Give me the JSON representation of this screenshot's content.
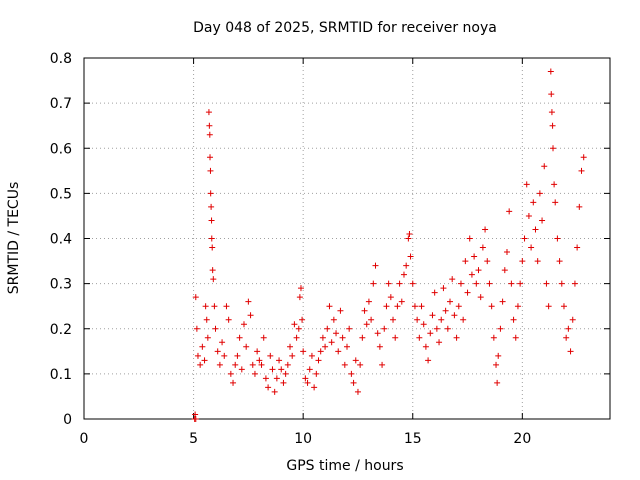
{
  "chart_data": {
    "type": "scatter",
    "title": "Day 048 of 2025, SRMTID for receiver noya",
    "xlabel": "GPS time / hours",
    "ylabel": "SRMTID / TECUs",
    "xlim": [
      0,
      24
    ],
    "ylim": [
      0,
      0.8
    ],
    "x_ticks": [
      0,
      5,
      10,
      15,
      20
    ],
    "x_tick_labels": [
      "0",
      "5",
      "10",
      "15",
      "20"
    ],
    "y_ticks": [
      0,
      0.1,
      0.2,
      0.3,
      0.4,
      0.5,
      0.6,
      0.7,
      0.8
    ],
    "y_tick_labels": [
      "0",
      "0.1",
      "0.2",
      "0.3",
      "0.4",
      "0.5",
      "0.6",
      "0.7",
      "0.8"
    ],
    "grid": true,
    "marker": "+",
    "marker_color": "#e00000",
    "series": [
      {
        "name": "SRMTID",
        "points": [
          [
            5.05,
            0.0
          ],
          [
            5.07,
            0.01
          ],
          [
            5.1,
            0.0
          ],
          [
            5.1,
            0.27
          ],
          [
            5.15,
            0.2
          ],
          [
            5.2,
            0.14
          ],
          [
            5.3,
            0.12
          ],
          [
            5.4,
            0.16
          ],
          [
            5.5,
            0.13
          ],
          [
            5.55,
            0.25
          ],
          [
            5.6,
            0.22
          ],
          [
            5.65,
            0.18
          ],
          [
            5.7,
            0.68
          ],
          [
            5.72,
            0.65
          ],
          [
            5.74,
            0.63
          ],
          [
            5.75,
            0.58
          ],
          [
            5.77,
            0.55
          ],
          [
            5.78,
            0.5
          ],
          [
            5.8,
            0.47
          ],
          [
            5.82,
            0.44
          ],
          [
            5.83,
            0.4
          ],
          [
            5.85,
            0.38
          ],
          [
            5.87,
            0.33
          ],
          [
            5.9,
            0.31
          ],
          [
            5.95,
            0.25
          ],
          [
            6.0,
            0.2
          ],
          [
            6.1,
            0.15
          ],
          [
            6.2,
            0.12
          ],
          [
            6.3,
            0.17
          ],
          [
            6.4,
            0.14
          ],
          [
            6.5,
            0.25
          ],
          [
            6.6,
            0.22
          ],
          [
            6.7,
            0.1
          ],
          [
            6.8,
            0.08
          ],
          [
            6.9,
            0.12
          ],
          [
            7.0,
            0.14
          ],
          [
            7.1,
            0.18
          ],
          [
            7.2,
            0.11
          ],
          [
            7.3,
            0.21
          ],
          [
            7.4,
            0.16
          ],
          [
            7.5,
            0.26
          ],
          [
            7.6,
            0.23
          ],
          [
            7.7,
            0.12
          ],
          [
            7.8,
            0.1
          ],
          [
            7.9,
            0.15
          ],
          [
            8.0,
            0.13
          ],
          [
            8.1,
            0.12
          ],
          [
            8.2,
            0.18
          ],
          [
            8.3,
            0.09
          ],
          [
            8.4,
            0.07
          ],
          [
            8.5,
            0.14
          ],
          [
            8.6,
            0.11
          ],
          [
            8.7,
            0.06
          ],
          [
            8.8,
            0.09
          ],
          [
            8.9,
            0.13
          ],
          [
            9.0,
            0.11
          ],
          [
            9.1,
            0.08
          ],
          [
            9.2,
            0.1
          ],
          [
            9.3,
            0.12
          ],
          [
            9.4,
            0.16
          ],
          [
            9.5,
            0.14
          ],
          [
            9.6,
            0.21
          ],
          [
            9.7,
            0.18
          ],
          [
            9.8,
            0.2
          ],
          [
            9.85,
            0.27
          ],
          [
            9.9,
            0.29
          ],
          [
            9.95,
            0.22
          ],
          [
            10.0,
            0.15
          ],
          [
            10.1,
            0.09
          ],
          [
            10.2,
            0.08
          ],
          [
            10.3,
            0.11
          ],
          [
            10.4,
            0.14
          ],
          [
            10.5,
            0.07
          ],
          [
            10.6,
            0.1
          ],
          [
            10.7,
            0.13
          ],
          [
            10.8,
            0.15
          ],
          [
            10.9,
            0.18
          ],
          [
            11.0,
            0.16
          ],
          [
            11.1,
            0.2
          ],
          [
            11.2,
            0.25
          ],
          [
            11.3,
            0.17
          ],
          [
            11.4,
            0.22
          ],
          [
            11.5,
            0.19
          ],
          [
            11.6,
            0.15
          ],
          [
            11.7,
            0.24
          ],
          [
            11.8,
            0.18
          ],
          [
            11.9,
            0.12
          ],
          [
            12.0,
            0.16
          ],
          [
            12.1,
            0.2
          ],
          [
            12.2,
            0.1
          ],
          [
            12.3,
            0.08
          ],
          [
            12.4,
            0.13
          ],
          [
            12.5,
            0.06
          ],
          [
            12.6,
            0.12
          ],
          [
            12.7,
            0.18
          ],
          [
            12.8,
            0.24
          ],
          [
            12.9,
            0.21
          ],
          [
            13.0,
            0.26
          ],
          [
            13.1,
            0.22
          ],
          [
            13.2,
            0.3
          ],
          [
            13.3,
            0.34
          ],
          [
            13.4,
            0.19
          ],
          [
            13.5,
            0.16
          ],
          [
            13.6,
            0.12
          ],
          [
            13.7,
            0.2
          ],
          [
            13.8,
            0.25
          ],
          [
            13.9,
            0.3
          ],
          [
            14.0,
            0.27
          ],
          [
            14.1,
            0.22
          ],
          [
            14.2,
            0.18
          ],
          [
            14.3,
            0.25
          ],
          [
            14.4,
            0.3
          ],
          [
            14.5,
            0.26
          ],
          [
            14.6,
            0.32
          ],
          [
            14.7,
            0.34
          ],
          [
            14.8,
            0.4
          ],
          [
            14.85,
            0.41
          ],
          [
            14.9,
            0.36
          ],
          [
            15.0,
            0.3
          ],
          [
            15.1,
            0.25
          ],
          [
            15.2,
            0.22
          ],
          [
            15.3,
            0.18
          ],
          [
            15.4,
            0.25
          ],
          [
            15.5,
            0.21
          ],
          [
            15.6,
            0.16
          ],
          [
            15.7,
            0.13
          ],
          [
            15.8,
            0.19
          ],
          [
            15.9,
            0.23
          ],
          [
            16.0,
            0.28
          ],
          [
            16.1,
            0.2
          ],
          [
            16.2,
            0.17
          ],
          [
            16.3,
            0.22
          ],
          [
            16.4,
            0.29
          ],
          [
            16.5,
            0.24
          ],
          [
            16.6,
            0.2
          ],
          [
            16.7,
            0.26
          ],
          [
            16.8,
            0.31
          ],
          [
            16.9,
            0.23
          ],
          [
            17.0,
            0.18
          ],
          [
            17.1,
            0.25
          ],
          [
            17.2,
            0.3
          ],
          [
            17.3,
            0.22
          ],
          [
            17.4,
            0.35
          ],
          [
            17.5,
            0.28
          ],
          [
            17.6,
            0.4
          ],
          [
            17.7,
            0.32
          ],
          [
            17.8,
            0.36
          ],
          [
            17.9,
            0.3
          ],
          [
            18.0,
            0.33
          ],
          [
            18.1,
            0.27
          ],
          [
            18.2,
            0.38
          ],
          [
            18.3,
            0.42
          ],
          [
            18.4,
            0.35
          ],
          [
            18.5,
            0.3
          ],
          [
            18.6,
            0.25
          ],
          [
            18.7,
            0.18
          ],
          [
            18.8,
            0.12
          ],
          [
            18.85,
            0.08
          ],
          [
            18.9,
            0.14
          ],
          [
            19.0,
            0.2
          ],
          [
            19.1,
            0.26
          ],
          [
            19.2,
            0.33
          ],
          [
            19.3,
            0.37
          ],
          [
            19.4,
            0.46
          ],
          [
            19.5,
            0.3
          ],
          [
            19.6,
            0.22
          ],
          [
            19.7,
            0.18
          ],
          [
            19.8,
            0.25
          ],
          [
            19.9,
            0.3
          ],
          [
            20.0,
            0.35
          ],
          [
            20.1,
            0.4
          ],
          [
            20.2,
            0.52
          ],
          [
            20.3,
            0.45
          ],
          [
            20.4,
            0.38
          ],
          [
            20.5,
            0.48
          ],
          [
            20.6,
            0.42
          ],
          [
            20.7,
            0.35
          ],
          [
            20.8,
            0.5
          ],
          [
            20.9,
            0.44
          ],
          [
            21.0,
            0.56
          ],
          [
            21.1,
            0.3
          ],
          [
            21.2,
            0.25
          ],
          [
            21.3,
            0.77
          ],
          [
            21.32,
            0.72
          ],
          [
            21.35,
            0.68
          ],
          [
            21.38,
            0.65
          ],
          [
            21.4,
            0.6
          ],
          [
            21.45,
            0.52
          ],
          [
            21.5,
            0.48
          ],
          [
            21.6,
            0.4
          ],
          [
            21.7,
            0.35
          ],
          [
            21.8,
            0.3
          ],
          [
            21.9,
            0.25
          ],
          [
            22.0,
            0.18
          ],
          [
            22.1,
            0.2
          ],
          [
            22.2,
            0.15
          ],
          [
            22.3,
            0.22
          ],
          [
            22.4,
            0.3
          ],
          [
            22.5,
            0.38
          ],
          [
            22.6,
            0.47
          ],
          [
            22.7,
            0.55
          ],
          [
            22.8,
            0.58
          ]
        ]
      }
    ]
  }
}
